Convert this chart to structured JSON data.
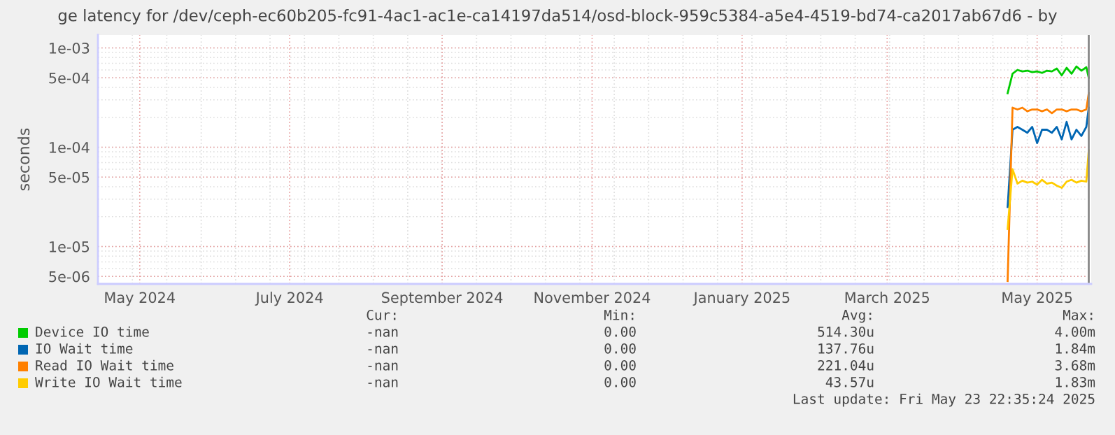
{
  "chart_data": {
    "type": "line",
    "title": "ge latency for /dev/ceph-ec60b205-fc91-4ac1-ac1e-ca14197da514/osd-block-959c5384-a5e4-4519-bd74-ca2017ab67d6 - by",
    "ylabel": "seconds",
    "x": [
      "2025-04-19",
      "2025-04-21",
      "2025-04-23",
      "2025-04-25",
      "2025-04-27",
      "2025-04-29",
      "2025-05-01",
      "2025-05-03",
      "2025-05-05",
      "2025-05-07",
      "2025-05-09",
      "2025-05-11",
      "2025-05-13",
      "2025-05-15",
      "2025-05-17",
      "2025-05-19",
      "2025-05-21",
      "2025-05-22"
    ],
    "series": [
      {
        "name": "Device IO time",
        "color": "#00cc00",
        "values": [
          0.00035,
          0.00055,
          0.0006,
          0.00058,
          0.00059,
          0.00057,
          0.00058,
          0.00056,
          0.00059,
          0.00058,
          0.00062,
          0.00053,
          0.00063,
          0.00055,
          0.00065,
          0.00059,
          0.00064,
          0.0005
        ]
      },
      {
        "name": "IO Wait time",
        "color": "#0066b3",
        "values": [
          2.5e-05,
          0.00015,
          0.00016,
          0.00015,
          0.00014,
          0.00016,
          0.00011,
          0.00015,
          0.00015,
          0.00014,
          0.00016,
          0.00012,
          0.00018,
          0.00012,
          0.00015,
          0.00013,
          0.00016,
          0.00025
        ]
      },
      {
        "name": "Read IO Wait time",
        "color": "#ff8000",
        "values": [
          4.5e-06,
          0.00025,
          0.00024,
          0.00025,
          0.00023,
          0.00024,
          0.00024,
          0.00023,
          0.00024,
          0.00022,
          0.00024,
          0.00024,
          0.00023,
          0.00024,
          0.00024,
          0.00023,
          0.00024,
          0.00035
        ]
      },
      {
        "name": "Write IO Wait time",
        "color": "#ffcc00",
        "values": [
          1.5e-05,
          6e-05,
          4.3e-05,
          4.6e-05,
          4.4e-05,
          4.5e-05,
          4.2e-05,
          4.7e-05,
          4.3e-05,
          4.4e-05,
          4.1e-05,
          3.9e-05,
          4.5e-05,
          4.7e-05,
          4.4e-05,
          4.6e-05,
          4.5e-05,
          9.3e-05
        ]
      }
    ],
    "log": "y",
    "ylim": [
      4.2e-06,
      0.00135
    ],
    "yticks": [
      {
        "value": 5e-06,
        "label": "5e-06"
      },
      {
        "value": 1e-05,
        "label": "1e-05"
      },
      {
        "value": 5e-05,
        "label": "5e-05"
      },
      {
        "value": 0.0001,
        "label": "1e-04"
      },
      {
        "value": 0.0005,
        "label": "5e-04"
      },
      {
        "value": 0.001,
        "label": "1e-03"
      }
    ],
    "xlim": [
      "2024-04-14",
      "2025-05-23"
    ],
    "xticks": [
      {
        "value": "2024-05-01",
        "label": "May 2024"
      },
      {
        "value": "2024-07-01",
        "label": "July 2024"
      },
      {
        "value": "2024-09-01",
        "label": "September 2024"
      },
      {
        "value": "2024-11-01",
        "label": "November 2024"
      },
      {
        "value": "2025-01-01",
        "label": "January 2025"
      },
      {
        "value": "2025-03-01",
        "label": "March 2025"
      },
      {
        "value": "2025-05-01",
        "label": "May 2025"
      }
    ],
    "ref_lines": [
      {
        "axis": "x",
        "value": "2025-05-22",
        "color": "#888888"
      }
    ],
    "grid": true,
    "legend": "bottom",
    "annotations": [
      "Cur:",
      "Min:",
      "Avg:",
      "Max:",
      "-nan",
      "0.00",
      "514.30u",
      "4.00m",
      "-nan",
      "0.00",
      "137.76u",
      "1.84m",
      "-nan",
      "0.00",
      "221.04u",
      "3.68m",
      "-nan",
      "0.00",
      "43.57u",
      "1.83m",
      "Last update: Fri May 23 22:35:24 2025"
    ]
  }
}
